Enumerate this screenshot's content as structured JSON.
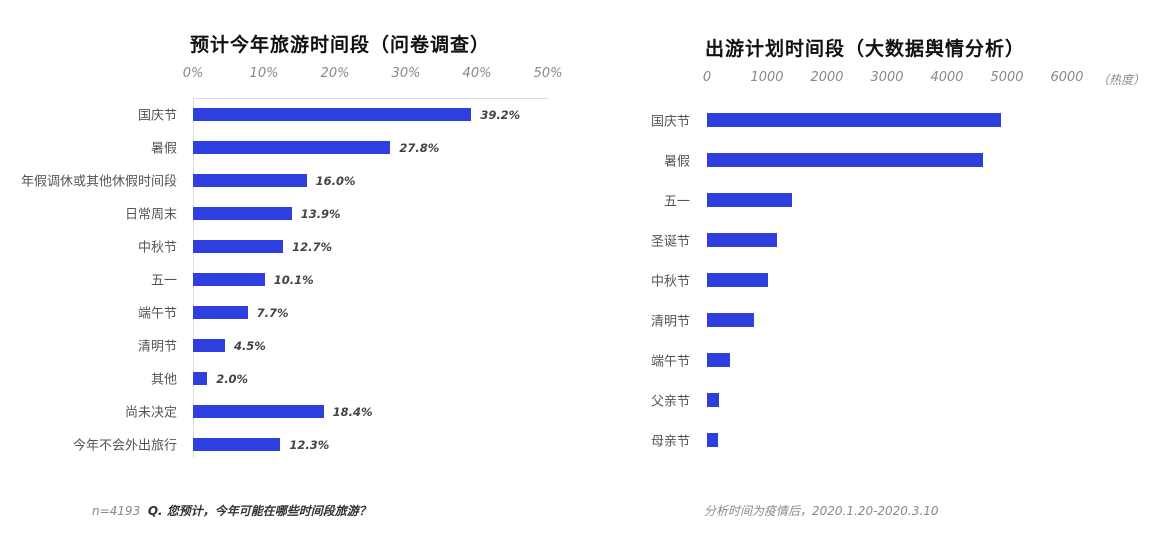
{
  "chart_data": [
    {
      "type": "bar",
      "orientation": "horizontal",
      "title": "预计今年旅游时间段（问卷调查）",
      "categories": [
        "国庆节",
        "暑假",
        "年假调休或其他休假时间段",
        "日常周末",
        "中秋节",
        "五一",
        "端午节",
        "清明节",
        "其他",
        "尚未决定",
        "今年不会外出旅行"
      ],
      "values": [
        39.2,
        27.8,
        16.0,
        13.9,
        12.7,
        10.1,
        7.7,
        4.5,
        2.0,
        18.4,
        12.3
      ],
      "value_labels": [
        "39.2%",
        "27.8%",
        "16.0%",
        "13.9%",
        "12.7%",
        "10.1%",
        "7.7%",
        "4.5%",
        "2.0%",
        "18.4%",
        "12.3%"
      ],
      "xlim": [
        0,
        50
      ],
      "x_ticks": [
        "0%",
        "10%",
        "20%",
        "30%",
        "40%",
        "50%"
      ],
      "x_tick_values": [
        0,
        10,
        20,
        30,
        40,
        50
      ],
      "axis_position": "top",
      "grid": false,
      "bar_color": "#2e3fe0",
      "footnote_prefix": "n=4193",
      "footnote_question": "Q. 您预计，今年可能在哪些时间段旅游？"
    },
    {
      "type": "bar",
      "orientation": "horizontal",
      "title": "出游计划时间段（大数据舆情分析）",
      "categories": [
        "国庆节",
        "暑假",
        "五一",
        "圣诞节",
        "中秋节",
        "清明节",
        "端午节",
        "父亲节",
        "母亲节"
      ],
      "values": [
        4900,
        4600,
        1420,
        1170,
        1020,
        790,
        380,
        200,
        180
      ],
      "xlim": [
        0,
        6000
      ],
      "x_ticks": [
        "0",
        "1000",
        "2000",
        "3000",
        "4000",
        "5000",
        "6000"
      ],
      "x_tick_values": [
        0,
        1000,
        2000,
        3000,
        4000,
        5000,
        6000
      ],
      "x_unit": "（热度）",
      "axis_position": "top",
      "grid": false,
      "bar_color": "#2e3fe0",
      "footnote": "分析时间为疫情后，2020.1.20-2020.3.10"
    }
  ]
}
